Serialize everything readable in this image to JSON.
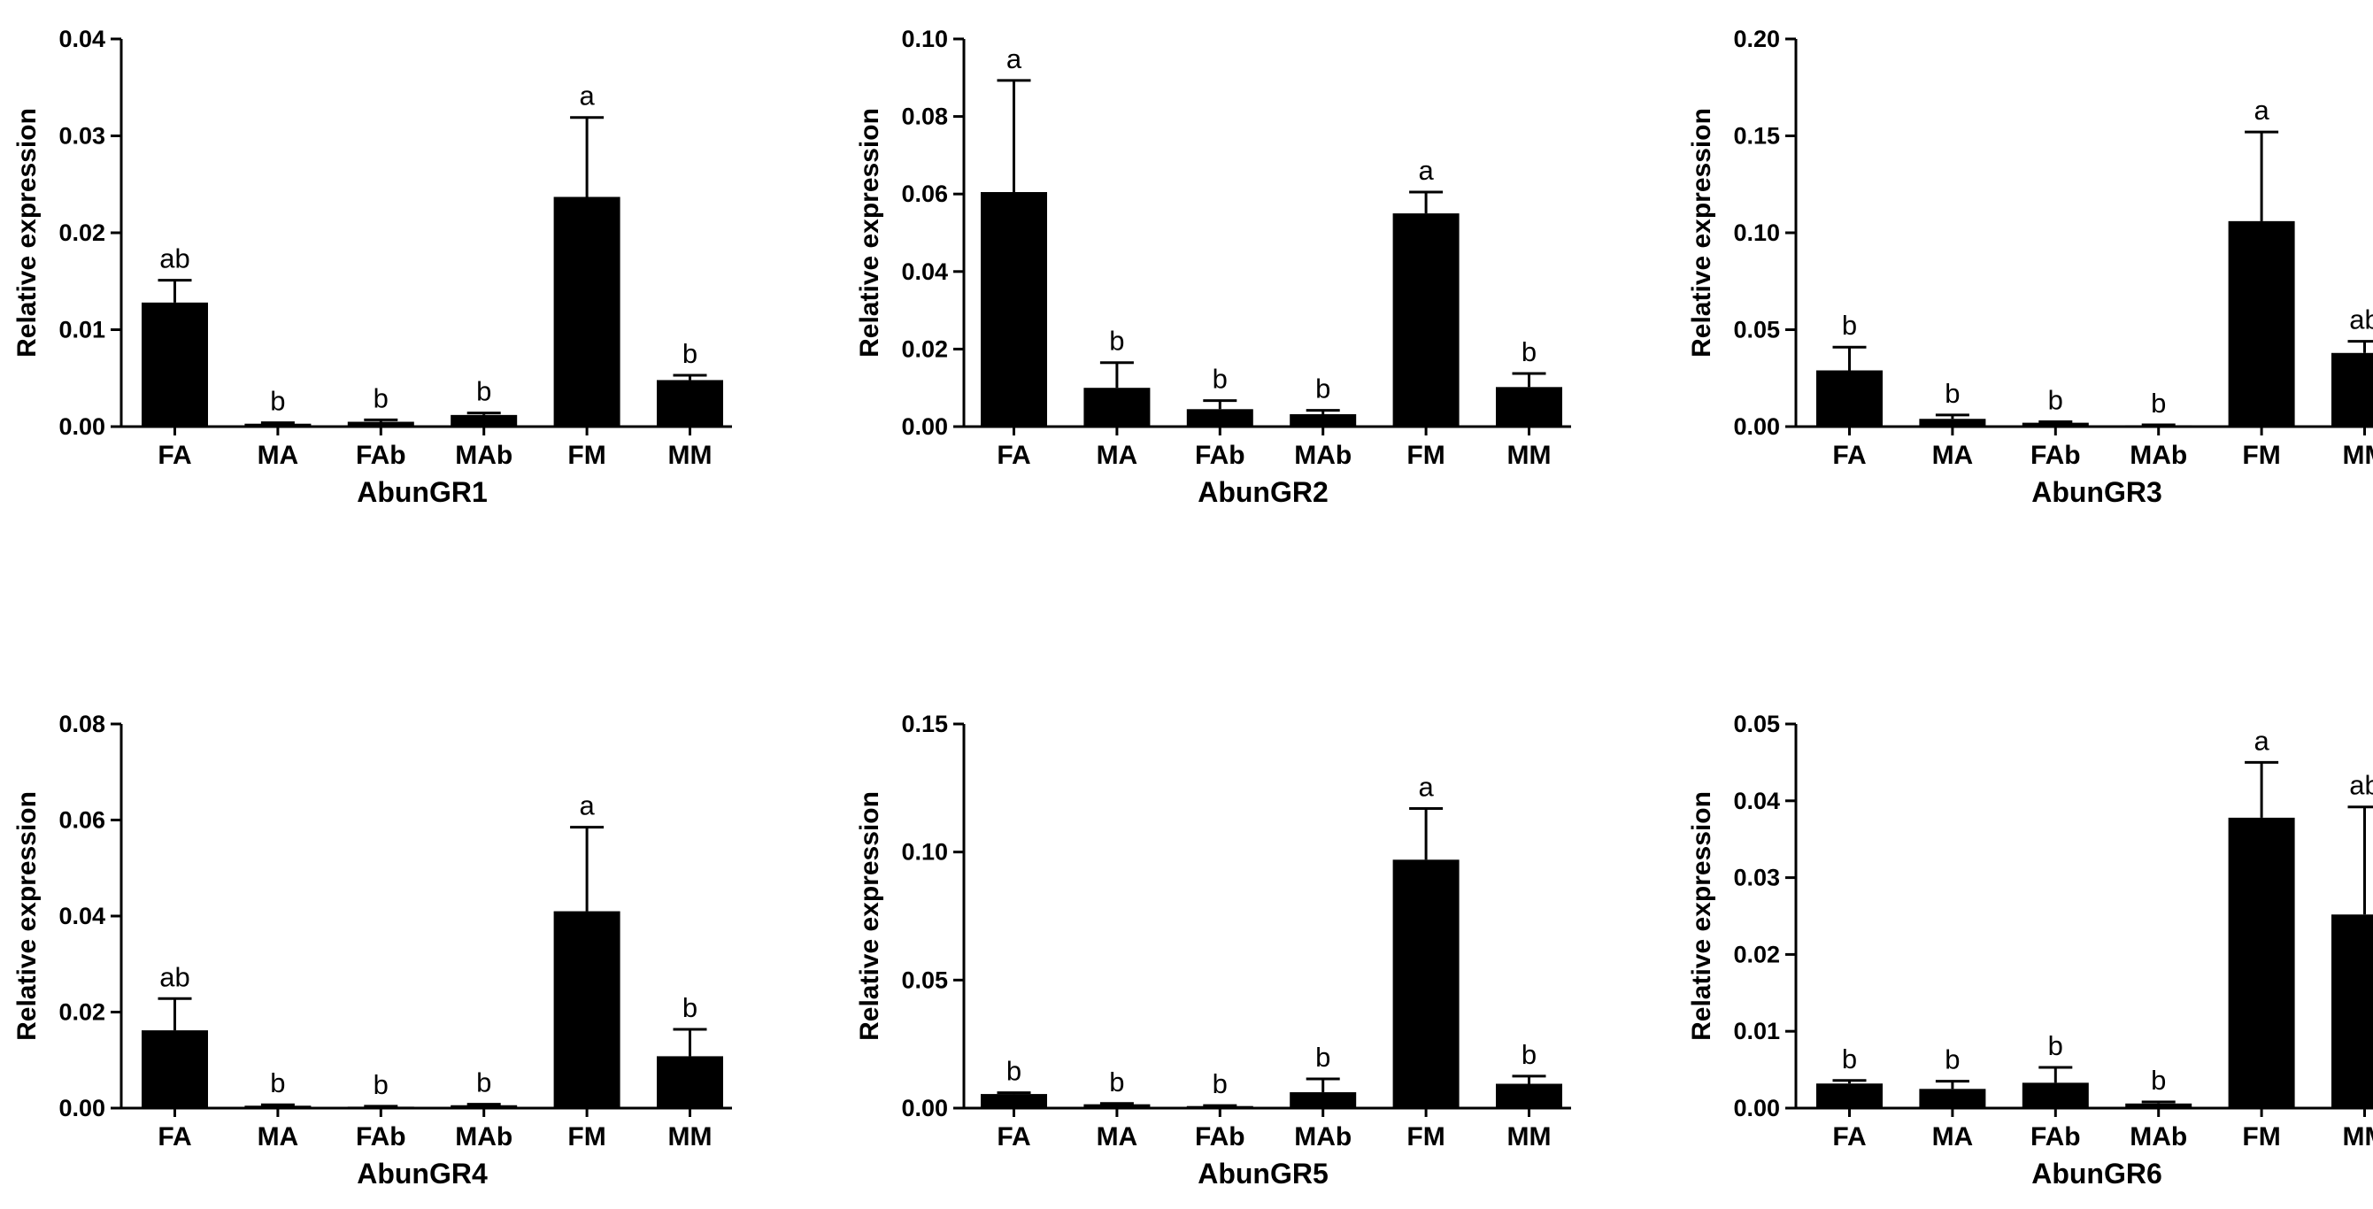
{
  "figure": {
    "ylabel": "Relative expression",
    "bar_color": "#000000",
    "axis_color": "#000000"
  },
  "chart_data": [
    {
      "type": "bar",
      "title": "AbunGR1",
      "xlabel": "AbunGR1",
      "ylabel": "Relative expression",
      "categories": [
        "FA",
        "MA",
        "FAb",
        "MAb",
        "FM",
        "MM"
      ],
      "values": [
        0.0128,
        0.0003,
        0.0005,
        0.0012,
        0.0237,
        0.0048
      ],
      "errors": [
        0.0023,
        0.0001,
        0.0002,
        0.0002,
        0.0082,
        0.0005
      ],
      "significance": [
        "ab",
        "b",
        "b",
        "b",
        "a",
        "b"
      ],
      "ylim": [
        0,
        0.04
      ],
      "yticks": [
        "0.00",
        "0.01",
        "0.02",
        "0.03",
        "0.04"
      ]
    },
    {
      "type": "bar",
      "title": "AbunGR2",
      "xlabel": "AbunGR2",
      "ylabel": "Relative expression",
      "categories": [
        "FA",
        "MA",
        "FAb",
        "MAb",
        "FM",
        "MM"
      ],
      "values": [
        0.0605,
        0.01,
        0.0045,
        0.0032,
        0.055,
        0.0102
      ],
      "errors": [
        0.0288,
        0.0065,
        0.0022,
        0.001,
        0.0055,
        0.0035
      ],
      "significance": [
        "a",
        "b",
        "b",
        "b",
        "a",
        "b"
      ],
      "ylim": [
        0,
        0.1
      ],
      "yticks": [
        "0.00",
        "0.02",
        "0.04",
        "0.06",
        "0.08",
        "0.10"
      ]
    },
    {
      "type": "bar",
      "title": "AbunGR3",
      "xlabel": "AbunGR3",
      "ylabel": "Relative expression",
      "categories": [
        "FA",
        "MA",
        "FAb",
        "MAb",
        "FM",
        "MM"
      ],
      "values": [
        0.029,
        0.004,
        0.002,
        0.0007,
        0.106,
        0.038
      ],
      "errors": [
        0.012,
        0.002,
        0.0005,
        0.0002,
        0.046,
        0.006
      ],
      "significance": [
        "b",
        "b",
        "b",
        "b",
        "a",
        "ab"
      ],
      "ylim": [
        0,
        0.2
      ],
      "yticks": [
        "0.00",
        "0.05",
        "0.10",
        "0.15",
        "0.20"
      ]
    },
    {
      "type": "bar",
      "title": "AbunGR4",
      "xlabel": "AbunGR4",
      "ylabel": "Relative expression",
      "categories": [
        "FA",
        "MA",
        "FAb",
        "MAb",
        "FM",
        "MM"
      ],
      "values": [
        0.0162,
        0.0005,
        0.0003,
        0.0006,
        0.041,
        0.0108
      ],
      "errors": [
        0.0066,
        0.0002,
        0.0001,
        0.0002,
        0.0175,
        0.0056
      ],
      "significance": [
        "ab",
        "b",
        "b",
        "b",
        "a",
        "b"
      ],
      "ylim": [
        0,
        0.08
      ],
      "yticks": [
        "0.00",
        "0.02",
        "0.04",
        "0.06",
        "0.08"
      ]
    },
    {
      "type": "bar",
      "title": "AbunGR5",
      "xlabel": "AbunGR5",
      "ylabel": "Relative expression",
      "categories": [
        "FA",
        "MA",
        "FAb",
        "MAb",
        "FM",
        "MM"
      ],
      "values": [
        0.0055,
        0.0015,
        0.0008,
        0.0062,
        0.097,
        0.0095
      ],
      "errors": [
        0.0005,
        0.0003,
        0.0002,
        0.0052,
        0.02,
        0.003
      ],
      "significance": [
        "b",
        "b",
        "b",
        "b",
        "a",
        "b"
      ],
      "ylim": [
        0,
        0.15
      ],
      "yticks": [
        "0.00",
        "0.05",
        "0.10",
        "0.15"
      ]
    },
    {
      "type": "bar",
      "title": "AbunGR6",
      "xlabel": "AbunGR6",
      "ylabel": "Relative expression",
      "categories": [
        "FA",
        "MA",
        "FAb",
        "MAb",
        "FM",
        "MM"
      ],
      "values": [
        0.0032,
        0.0025,
        0.0033,
        0.0006,
        0.0378,
        0.0252
      ],
      "errors": [
        0.0004,
        0.001,
        0.002,
        0.0002,
        0.0072,
        0.014
      ],
      "significance": [
        "b",
        "b",
        "b",
        "b",
        "a",
        "ab"
      ],
      "ylim": [
        0,
        0.05
      ],
      "yticks": [
        "0.00",
        "0.01",
        "0.02",
        "0.03",
        "0.04",
        "0.05"
      ]
    }
  ]
}
